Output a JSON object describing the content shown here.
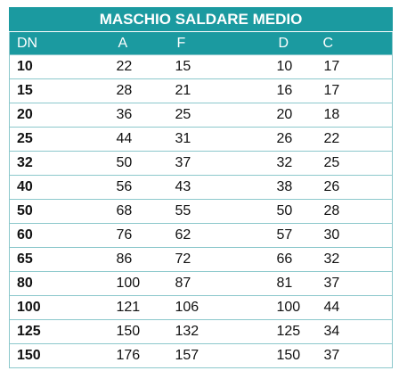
{
  "table": {
    "title": "MASCHIO SALDARE MEDIO",
    "headers": [
      "DN",
      "A",
      "F",
      "D",
      "C"
    ],
    "rows": [
      [
        "10",
        "22",
        "15",
        "10",
        "17"
      ],
      [
        "15",
        "28",
        "21",
        "16",
        "17"
      ],
      [
        "20",
        "36",
        "25",
        "20",
        "18"
      ],
      [
        "25",
        "44",
        "31",
        "26",
        "22"
      ],
      [
        "32",
        "50",
        "37",
        "32",
        "25"
      ],
      [
        "40",
        "56",
        "43",
        "38",
        "26"
      ],
      [
        "50",
        "68",
        "55",
        "50",
        "28"
      ],
      [
        "60",
        "76",
        "62",
        "57",
        "30"
      ],
      [
        "65",
        "86",
        "72",
        "66",
        "32"
      ],
      [
        "80",
        "100",
        "87",
        "81",
        "37"
      ],
      [
        "100",
        "121",
        "106",
        "100",
        "44"
      ],
      [
        "125",
        "150",
        "132",
        "125",
        "34"
      ],
      [
        "150",
        "176",
        "157",
        "150",
        "37"
      ]
    ]
  },
  "colors": {
    "header_bg": "#1b9aa0",
    "header_text": "#ffffff",
    "row_divider": "#8cc8cc"
  }
}
